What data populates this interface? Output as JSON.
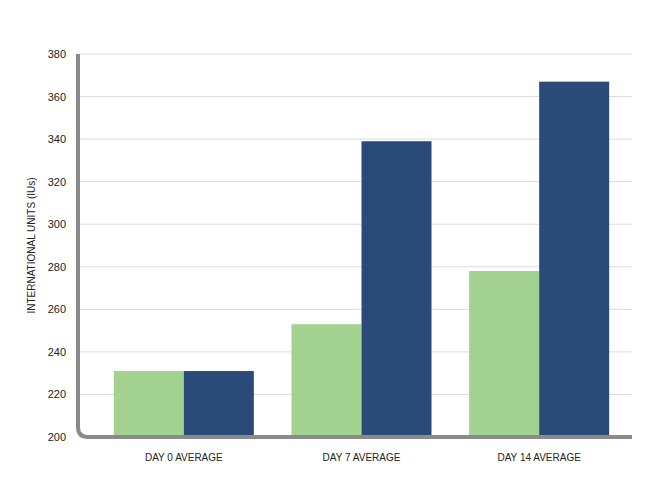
{
  "chart_data": {
    "type": "bar",
    "y_label": "INTERNATIONAL UNITS (IUs)",
    "categories": [
      "DAY 0 AVERAGE",
      "DAY 7 AVERAGE",
      "DAY 14 AVERAGE"
    ],
    "series": [
      {
        "color": "#a3d18f",
        "values": [
          231,
          253,
          278
        ]
      },
      {
        "color": "#2a4a78",
        "values": [
          231,
          339,
          367
        ]
      }
    ],
    "ylim": [
      200,
      380
    ],
    "yticks": [
      200,
      220,
      240,
      260,
      280,
      300,
      320,
      340,
      360,
      380
    ],
    "grid": true
  }
}
